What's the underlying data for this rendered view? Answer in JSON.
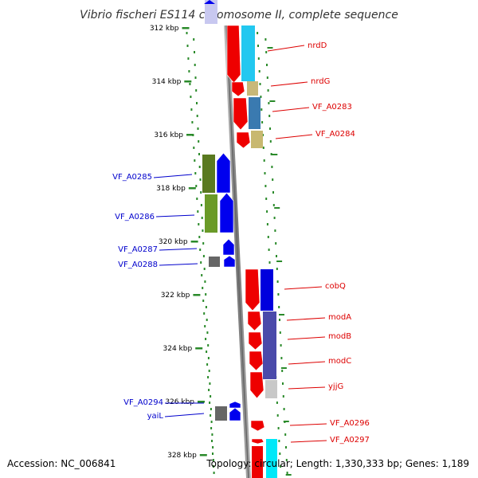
{
  "title": "Vibrio fischeri ES114 chromosome II, complete sequence",
  "footer": {
    "accession": "Accession: NC_006841",
    "topology": "Topology: circular; Length: 1,330,333 bp; Genes: 1,189"
  },
  "colors": {
    "right_label": "#dd0000",
    "left_label": "#0000cc",
    "tick": "#2a8a2a",
    "backbone": "#888888"
  },
  "kbp_ticks": [
    "312 kbp",
    "314 kbp",
    "316 kbp",
    "318 kbp",
    "320 kbp",
    "322 kbp",
    "324 kbp",
    "326 kbp",
    "328 kbp"
  ],
  "genes_right": [
    "nrdD",
    "nrdG",
    "VF_A0283",
    "VF_A0284",
    "cobQ",
    "modA",
    "modB",
    "modC",
    "yjjG",
    "VF_A0296",
    "VF_A0297"
  ],
  "genes_left": [
    "VF_A0285",
    "VF_A0286",
    "VF_A0287",
    "VF_A0288",
    "VF_A0294",
    "yaiL"
  ]
}
